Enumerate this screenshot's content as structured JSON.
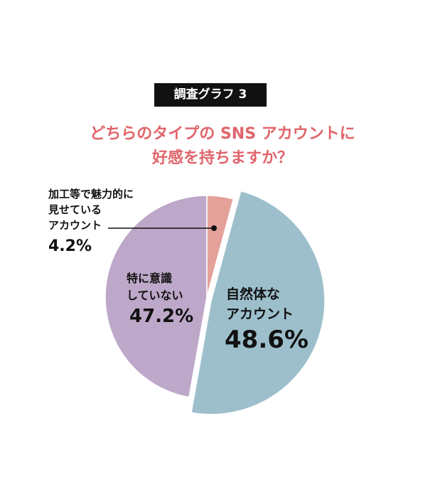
{
  "chart_data": {
    "type": "pie",
    "badge": "調査グラフ 3",
    "title": "どちらのタイプの SNS アカウントに\n好感を持ちますか？",
    "categories": [
      "加工等で魅力的に\n見せている\nアカウント",
      "自然体な\nアカウント",
      "特に意識\nしていない"
    ],
    "values": [
      4.2,
      48.6,
      47.2
    ],
    "value_labels": [
      "4.2%",
      "48.6%",
      "47.2%"
    ],
    "colors": [
      "#e4a19a",
      "#9dbfcc",
      "#bea8c9"
    ]
  }
}
